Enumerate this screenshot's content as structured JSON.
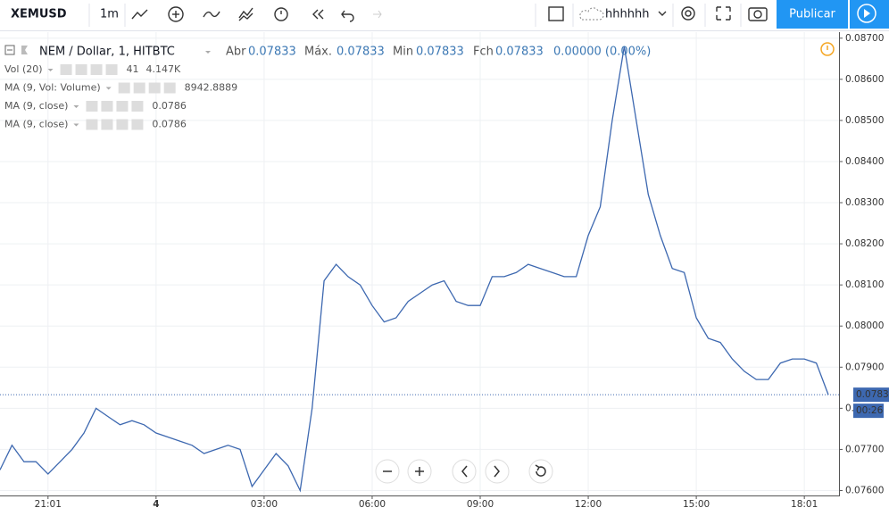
{
  "toolbar": {
    "symbol": "XEMUSD",
    "interval": "1m",
    "layout_name": "hhhhhh",
    "publish": "Publicar"
  },
  "legend": {
    "title": "NEM / Dollar, 1, HITBTC",
    "open_label": "Abr",
    "open": "0.07833",
    "high_label": "Máx.",
    "high": "0.07833",
    "low_label": "Min",
    "low": "0.07833",
    "close_label": "Fch",
    "close": "0.07833",
    "change": "0.00000 (0.00%)"
  },
  "indicators": [
    {
      "name": "Vol (20)",
      "values": [
        "41",
        "4.147K"
      ]
    },
    {
      "name": "MA (9, Vol: Volume)",
      "values": [
        "8942.8889"
      ]
    },
    {
      "name": "MA (9, close)",
      "values": [
        "0.0786"
      ]
    },
    {
      "name": "MA (9, close)",
      "values": [
        "0.0786"
      ]
    }
  ],
  "chart_data": {
    "type": "line",
    "categories": [
      null,
      null,
      null,
      null,
      "21:01",
      null,
      null,
      null,
      null,
      null,
      null,
      null,
      null,
      "4",
      null,
      null,
      null,
      null,
      null,
      null,
      null,
      null,
      "03:00",
      null,
      null,
      null,
      null,
      null,
      null,
      null,
      null,
      "06:00",
      null,
      null,
      null,
      null,
      null,
      null,
      null,
      null,
      "09:00",
      null,
      null,
      null,
      null,
      null,
      null,
      null,
      null,
      "12:00",
      null,
      null,
      null,
      null,
      null,
      null,
      null,
      null,
      "15:00",
      null,
      null,
      null,
      null,
      null,
      null,
      null,
      null,
      "18:01",
      null,
      null
    ],
    "series": [
      {
        "color": "#3d68b0",
        "values": [
          0.0765,
          0.0771,
          0.0767,
          0.0767,
          0.0764,
          0.0767,
          0.077,
          0.0774,
          0.078,
          0.0778,
          0.0776,
          0.0777,
          0.0776,
          0.0774,
          0.0773,
          0.0772,
          0.0771,
          0.0769,
          0.077,
          0.0771,
          0.077,
          0.0761,
          0.0765,
          0.0769,
          0.0766,
          0.076,
          0.078,
          0.0811,
          0.0815,
          0.0812,
          0.081,
          0.0805,
          0.0801,
          0.0802,
          0.0806,
          0.0808,
          0.081,
          0.0811,
          0.0806,
          0.0805,
          0.0805,
          0.0812,
          0.0812,
          0.0813,
          0.0815,
          0.0814,
          0.0813,
          0.0812,
          0.0812,
          0.0822,
          0.0829,
          0.085,
          0.0868,
          0.085,
          0.0832,
          0.0822,
          0.0814,
          0.0813,
          0.0802,
          0.0797,
          0.0796,
          0.0792,
          0.0789,
          0.0787,
          0.0787,
          0.0791,
          0.0792,
          0.0792,
          0.0791,
          0.07833
        ]
      }
    ],
    "ylim": [
      0.07588,
      0.08706
    ],
    "yticks": [
      {
        "value": 0.076,
        "label": "0.07600"
      },
      {
        "value": 0.077,
        "label": "0.07700"
      },
      {
        "value": 0.078,
        "label": "0.07800"
      },
      {
        "value": 0.079,
        "label": "0.07900"
      },
      {
        "value": 0.08,
        "label": "0.08000"
      },
      {
        "value": 0.081,
        "label": "0.08100"
      },
      {
        "value": 0.082,
        "label": "0.08200"
      },
      {
        "value": 0.083,
        "label": "0.08300"
      },
      {
        "value": 0.084,
        "label": "0.08400"
      },
      {
        "value": 0.085,
        "label": "0.08500"
      },
      {
        "value": 0.086,
        "label": "0.08600"
      },
      {
        "value": 0.087,
        "label": "0.08700"
      }
    ],
    "last_price": {
      "value": 0.07833,
      "label": "0.07833"
    },
    "countdown": "00:26",
    "grid": true
  }
}
